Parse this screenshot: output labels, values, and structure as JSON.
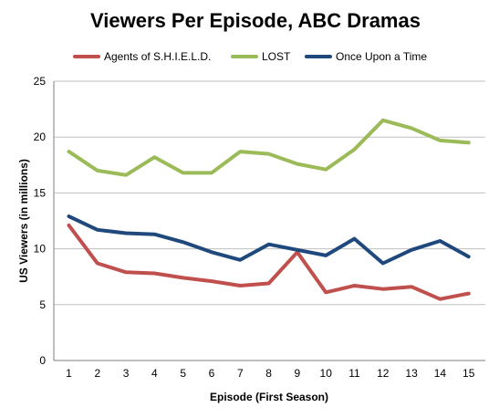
{
  "chart_data": {
    "type": "line",
    "title": "Viewers Per Episode, ABC Dramas",
    "xlabel": "Episode (First Season)",
    "ylabel": "US Viewers (in millions)",
    "ylim": [
      0,
      25
    ],
    "yticks": [
      "0",
      "5",
      "10",
      "15",
      "20",
      "25"
    ],
    "grid": "horizontal",
    "legend_position": "top",
    "categories": [
      "1",
      "2",
      "3",
      "4",
      "5",
      "6",
      "7",
      "8",
      "9",
      "10",
      "11",
      "12",
      "13",
      "14",
      "15"
    ],
    "series": [
      {
        "name": "Agents of S.H.I.E.L.D.",
        "color": "#c0504d",
        "values": [
          12.1,
          8.7,
          7.9,
          7.8,
          7.4,
          7.1,
          6.7,
          6.9,
          9.7,
          6.1,
          6.7,
          6.4,
          6.6,
          5.5,
          6.0
        ]
      },
      {
        "name": "LOST",
        "color": "#9bbb59",
        "values": [
          18.7,
          17.0,
          16.6,
          18.2,
          16.8,
          16.8,
          18.7,
          18.5,
          17.6,
          17.1,
          18.9,
          21.5,
          20.8,
          19.7,
          19.5
        ]
      },
      {
        "name": "Once Upon a Time",
        "color": "#1f497d",
        "values": [
          12.9,
          11.7,
          11.4,
          11.3,
          10.6,
          9.7,
          9.0,
          10.4,
          9.9,
          9.4,
          10.9,
          8.7,
          9.9,
          10.7,
          9.3
        ]
      }
    ]
  }
}
